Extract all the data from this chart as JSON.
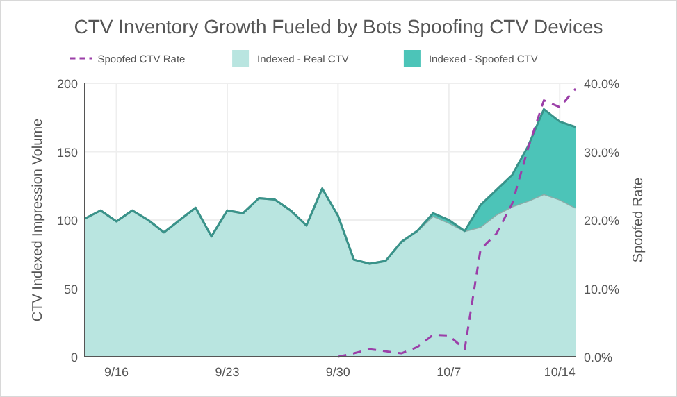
{
  "chart_data": {
    "type": "area",
    "title": "CTV Inventory Growth Fueled by Bots Spoofing CTV Devices",
    "ylabel": "CTV Indexed Impression Volume",
    "y2label": "Spoofed Rate",
    "x": [
      "--09-14",
      "--09-15",
      "--09-16",
      "--09-17",
      "--09-18",
      "--09-19",
      "--09-20",
      "--09-21",
      "--09-22",
      "--09-23",
      "--09-24",
      "--09-25",
      "--09-26",
      "--09-27",
      "--09-28",
      "--09-29",
      "--09-30",
      "--10-01",
      "--10-02",
      "--10-03",
      "--10-04",
      "--10-05",
      "--10-06",
      "--10-07",
      "--10-08",
      "--10-09",
      "--10-10",
      "--10-11",
      "--10-12",
      "--10-13",
      "--10-14",
      "--10-15"
    ],
    "xlim": [
      "--09-14",
      "--10-15"
    ],
    "xticks": [
      {
        "value": "--09-16",
        "label": "9/16"
      },
      {
        "value": "--09-23",
        "label": "9/23"
      },
      {
        "value": "--09-30",
        "label": "9/30"
      },
      {
        "value": "--10-07",
        "label": "10/7"
      },
      {
        "value": "--10-14",
        "label": "10/14"
      }
    ],
    "ylim": [
      0,
      200
    ],
    "yticks": [
      0,
      50,
      100,
      150,
      200
    ],
    "y2lim": [
      0,
      40
    ],
    "y2ticks": [
      {
        "value": 0,
        "label": "0.0%"
      },
      {
        "value": 10,
        "label": "10.0%"
      },
      {
        "value": 20,
        "label": "20.0%"
      },
      {
        "value": 30,
        "label": "30.0%"
      },
      {
        "value": 40,
        "label": "40.0%"
      }
    ],
    "stacked": true,
    "grid": true,
    "legend": "top",
    "series": [
      {
        "name": "Spoofed CTV Rate",
        "type": "line",
        "axis": "y2",
        "color": "#9b3fa8",
        "line_style": "dashed",
        "values": [
          null,
          null,
          null,
          null,
          null,
          null,
          null,
          null,
          null,
          null,
          null,
          null,
          null,
          null,
          null,
          null,
          0,
          0.5,
          1.1,
          0.8,
          0.5,
          1.4,
          3.2,
          3.1,
          1.1,
          15.7,
          18,
          22.4,
          30.5,
          37.5,
          36.5,
          39.2
        ]
      },
      {
        "name": "Indexed - Real CTV",
        "color": "#b9e5e0",
        "values": [
          101,
          107,
          99,
          107,
          100,
          91,
          100,
          109,
          88,
          107,
          105,
          116,
          115,
          107,
          96,
          123,
          103,
          71,
          68,
          70,
          84,
          92,
          103,
          98,
          92,
          95,
          104,
          110,
          114,
          119,
          115,
          109
        ]
      },
      {
        "name": "Indexed - Spoofed CTV",
        "color": "#4cc4b8",
        "values": [
          0,
          0,
          0,
          0,
          0,
          0,
          0,
          0,
          0,
          0,
          0,
          0,
          0,
          0,
          0,
          0,
          0,
          0,
          0,
          0,
          0,
          0,
          2,
          2,
          0,
          16,
          18,
          23,
          40,
          62,
          57,
          59
        ]
      }
    ]
  }
}
